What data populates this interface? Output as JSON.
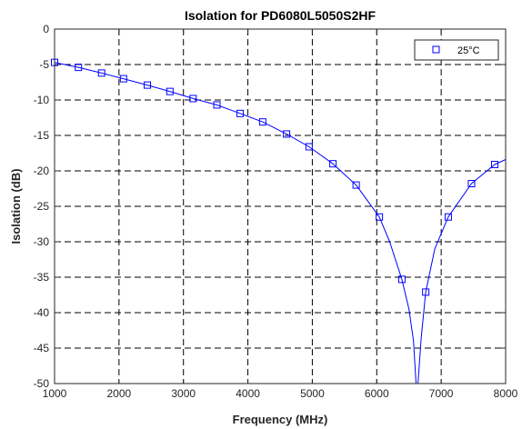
{
  "chart_data": {
    "type": "line",
    "title": "Isolation for PD6080L5050S2HF",
    "xlabel": "Frequency (MHz)",
    "ylabel": "Isolation (dB)",
    "xlim": [
      1000,
      8000
    ],
    "ylim": [
      -50,
      0
    ],
    "xticks": [
      1000,
      2000,
      3000,
      4000,
      5000,
      6000,
      7000,
      8000
    ],
    "yticks": [
      0,
      -5,
      -10,
      -15,
      -20,
      -25,
      -30,
      -35,
      -40,
      -45,
      -50
    ],
    "grid": true,
    "legend_position": "top-right",
    "color": "#0000ff",
    "series": [
      {
        "name": "25°C",
        "markers_x": [
          1000,
          1370,
          1730,
          2070,
          2440,
          2790,
          3150,
          3520,
          3880,
          4230,
          4600,
          4950,
          5320,
          5680,
          6040,
          6390,
          6760,
          7110,
          7470,
          7830
        ],
        "markers_y": [
          -4.7,
          -5.4,
          -6.2,
          -7.0,
          -7.9,
          -8.8,
          -9.8,
          -10.7,
          -11.9,
          -13.1,
          -14.8,
          -16.6,
          -19.0,
          -22.0,
          -26.5,
          -35.3,
          -37.1,
          -26.5,
          -21.8,
          -19.1
        ],
        "curve_x": [
          1000,
          1370,
          1730,
          2070,
          2440,
          2790,
          3150,
          3520,
          3880,
          4230,
          4600,
          4950,
          5320,
          5680,
          6040,
          6200,
          6390,
          6500,
          6570,
          6610,
          6640,
          6690,
          6760,
          6900,
          7110,
          7470,
          7830,
          8000
        ],
        "curve_y": [
          -4.7,
          -5.4,
          -6.2,
          -7.0,
          -7.9,
          -8.8,
          -9.8,
          -10.7,
          -11.9,
          -13.1,
          -14.8,
          -16.6,
          -19.0,
          -22.0,
          -26.5,
          -30.0,
          -35.3,
          -39.5,
          -44.0,
          -50.0,
          -50.0,
          -43.5,
          -37.1,
          -31.0,
          -26.5,
          -21.8,
          -19.1,
          -18.4
        ]
      }
    ]
  }
}
